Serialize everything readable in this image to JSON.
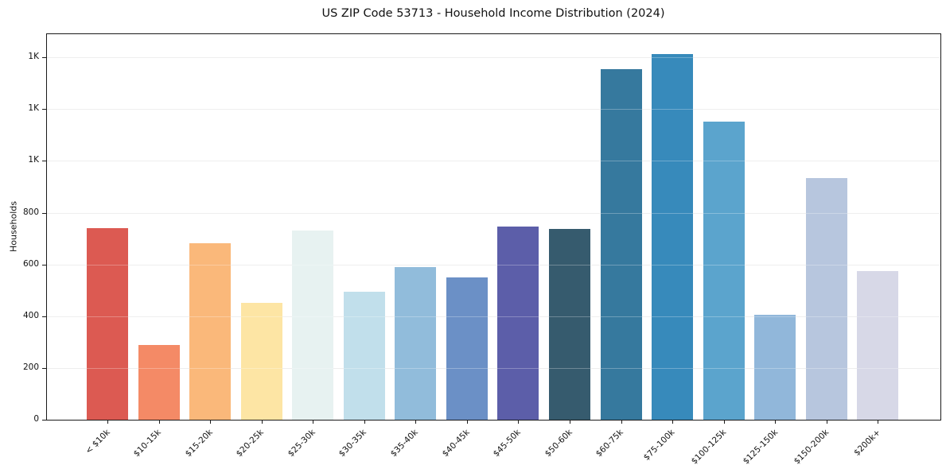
{
  "chart_data": {
    "type": "bar",
    "title": "US ZIP Code 53713 - Household Income Distribution (2024)",
    "xlabel": "",
    "ylabel": "Households",
    "categories": [
      "< $10k",
      "$10-15k",
      "$15-20k",
      "$20-25k",
      "$25-30k",
      "$30-35k",
      "$35-40k",
      "$40-45k",
      "$45-50k",
      "$50-60k",
      "$60-75k",
      "$75-100k",
      "$100-125k",
      "$125-150k",
      "$150-200k",
      "$200k+"
    ],
    "values": [
      740,
      290,
      682,
      453,
      731,
      495,
      590,
      551,
      746,
      737,
      1355,
      1413,
      1151,
      406,
      934,
      576
    ],
    "bar_colors": [
      "#dc5a52",
      "#f48a66",
      "#fab87a",
      "#fde5a4",
      "#e7f2f1",
      "#c1dfeb",
      "#91bcdb",
      "#6b90c6",
      "#5c5ea9",
      "#365b6e",
      "#36799e",
      "#378abb",
      "#5ba4cd",
      "#91b7da",
      "#b7c6de",
      "#d7d8e7"
    ],
    "ylim": [
      0,
      1490
    ],
    "yticks": [
      {
        "value": 0,
        "label": "0"
      },
      {
        "value": 200,
        "label": "200"
      },
      {
        "value": 400,
        "label": "400"
      },
      {
        "value": 600,
        "label": "600"
      },
      {
        "value": 800,
        "label": "800"
      },
      {
        "value": 1000,
        "label": "1K"
      },
      {
        "value": 1200,
        "label": "1K"
      },
      {
        "value": 1400,
        "label": "1K"
      }
    ],
    "grid": "horizontal-only",
    "legend": false,
    "background_color": "#ffffff",
    "gridline_color": "#e8e8e8",
    "axis_color": "#1a1a1a",
    "text_color": "#111111"
  }
}
